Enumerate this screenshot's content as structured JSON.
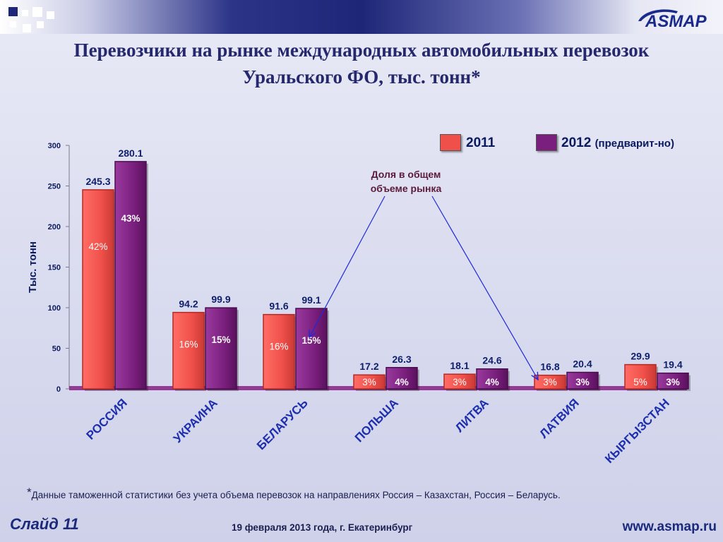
{
  "title_line1": "Перевозчики на рынке международных автомобильных перевозок",
  "title_line2": "Уральского ФО, тыс. тонн*",
  "logo_text": "ASMAP",
  "legend": [
    {
      "label": "2011",
      "note": ""
    },
    {
      "label": "2012",
      "note": "(предварит-но)"
    }
  ],
  "callout": {
    "line1": "Доля в общем",
    "line2": "объеме рынка"
  },
  "footnote": {
    "mark": "*",
    "text": "Данные таможенной статистики без учета объема перевозок на направлениях Россия – Казахстан, Россия – Беларусь."
  },
  "footer": {
    "slide": "Слайд 11",
    "date": "19 февраля 2013 года,   г. Екатеринбург",
    "url": "www.asmap.ru"
  },
  "colors": {
    "series_2011": "#f0504a",
    "series_2012": "#7a1f7e",
    "value_label": "#10206a",
    "callout_arrow": "#1f2ad8"
  },
  "chart_data": {
    "type": "bar",
    "title": "Перевозчики на рынке международных автомобильных перевозок Уральского ФО, тыс. тонн*",
    "ylabel": "Тыс. тонн",
    "xlabel": "",
    "ylim": [
      0,
      300
    ],
    "yticks": [
      0,
      50,
      100,
      150,
      200,
      250,
      300
    ],
    "categories": [
      "РОССИЯ",
      "УКРАИНА",
      "БЕЛАРУСЬ",
      "ПОЛЬША",
      "ЛИТВА",
      "ЛАТВИЯ",
      "КЫРГЫЗСТАН"
    ],
    "series": [
      {
        "name": "2011",
        "values": [
          245.3,
          94.2,
          91.6,
          17.2,
          18.1,
          16.8,
          29.9
        ],
        "shares": [
          "42%",
          "16%",
          "16%",
          "3%",
          "3%",
          "3%",
          "5%"
        ]
      },
      {
        "name": "2012 (предварит-но)",
        "values": [
          280.1,
          99.9,
          99.1,
          26.3,
          24.6,
          20.4,
          19.4
        ],
        "shares": [
          "43%",
          "15%",
          "15%",
          "4%",
          "4%",
          "3%",
          "3%"
        ]
      }
    ],
    "grid": false,
    "legend_position": "top-right"
  }
}
